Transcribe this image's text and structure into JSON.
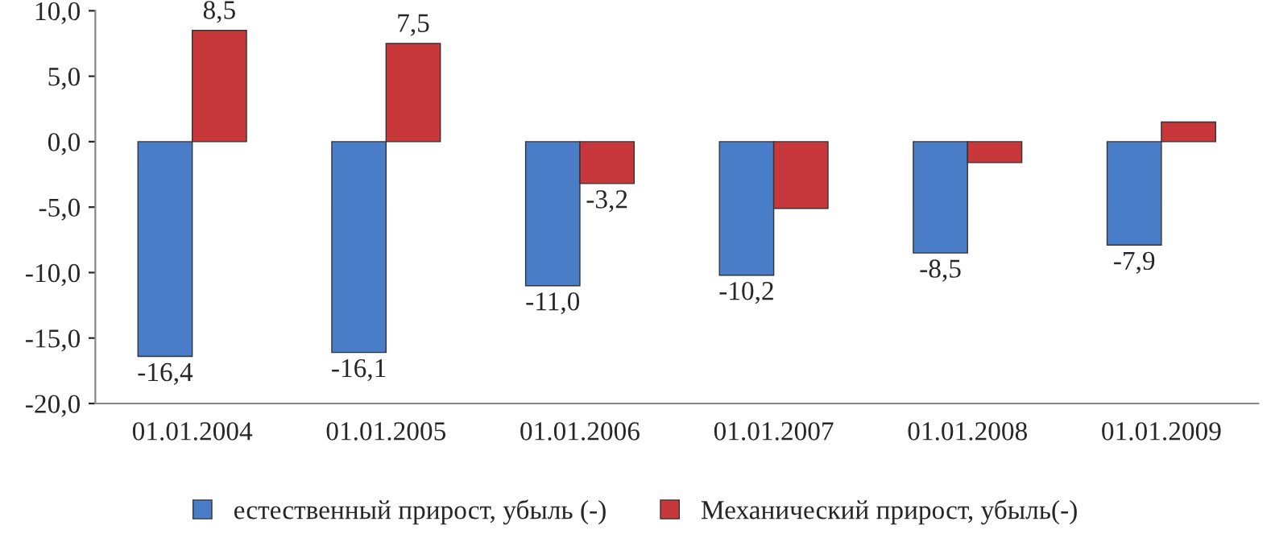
{
  "chart_data": {
    "type": "bar",
    "categories": [
      "01.01.2004",
      "01.01.2005",
      "01.01.2006",
      "01.01.2007",
      "01.01.2008",
      "01.01.2009"
    ],
    "series": [
      {
        "name": "естественный прирост, убыль (-)",
        "color": "#4a7dc8",
        "values": [
          -16.4,
          -16.1,
          -11.0,
          -10.2,
          -8.5,
          -7.9
        ],
        "value_labels": [
          "-16,4",
          "-16,1",
          "-11,0",
          "-10,2",
          "-8,5",
          "-7,9"
        ]
      },
      {
        "name": "Механический прирост, убыль(-)",
        "color": "#c8383a",
        "values": [
          8.5,
          7.5,
          -3.2,
          -5.1,
          -1.6,
          1.5
        ],
        "value_labels": [
          "8,5",
          "7,5",
          "-3,2",
          null,
          null,
          null
        ]
      }
    ],
    "ylim": [
      -20,
      10
    ],
    "yticks": [
      {
        "value": -20,
        "label": "-20,0"
      },
      {
        "value": -15,
        "label": "-15,0"
      },
      {
        "value": -10,
        "label": "-10,0"
      },
      {
        "value": -5,
        "label": "-5,0"
      },
      {
        "value": 0,
        "label": "0,0"
      },
      {
        "value": 5,
        "label": "5,0"
      },
      {
        "value": 10,
        "label": "10,0"
      }
    ],
    "legend": "bottom"
  }
}
